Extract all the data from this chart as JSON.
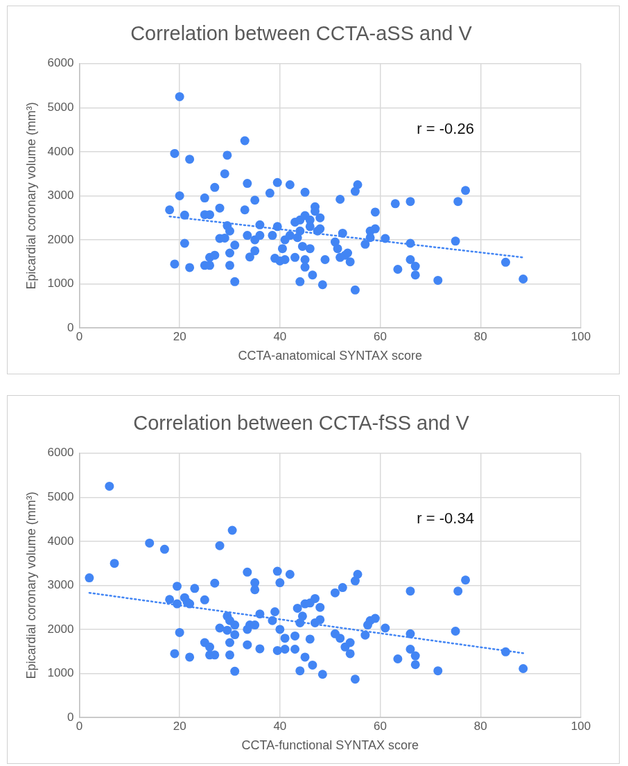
{
  "chart_data": [
    {
      "type": "scatter",
      "title": "Correlation between CCTA-aSS and V",
      "xlabel": "CCTA-anatomical SYNTAX score",
      "ylabel": "Epicardial coronary volume (mm³)",
      "xlim": [
        0,
        100
      ],
      "xticks": [
        0,
        20,
        40,
        60,
        80,
        100
      ],
      "ylim": [
        0,
        6000
      ],
      "yticks": [
        0,
        1000,
        2000,
        3000,
        4000,
        5000,
        6000
      ],
      "grid": true,
      "legend": false,
      "marker": "circle",
      "annotations": [
        "r = -0.26"
      ],
      "series": [
        {
          "color": "#4285f4",
          "x": [
            18,
            19,
            19,
            20,
            20,
            21,
            21,
            22,
            22,
            25,
            25,
            25,
            26,
            26,
            26,
            27,
            27,
            28,
            28,
            29,
            29,
            29.5,
            29.5,
            30,
            30,
            30,
            31,
            31,
            33,
            33,
            33.5,
            33.5,
            34,
            35,
            35,
            35,
            36,
            36,
            38,
            38.5,
            39,
            39.5,
            39.5,
            40,
            40.5,
            41,
            41,
            42,
            42,
            43,
            43,
            43.5,
            44,
            44,
            44,
            44.5,
            45,
            45,
            45,
            45,
            46,
            46,
            46,
            46.5,
            47,
            47,
            47.5,
            48,
            48,
            48.5,
            49,
            51,
            51.5,
            52,
            52,
            52.5,
            53,
            53.5,
            54,
            55,
            55,
            55.5,
            57,
            58,
            58,
            59,
            59,
            61,
            63,
            63.5,
            66,
            66,
            66,
            67,
            67,
            71.5,
            75,
            75.5,
            77,
            85,
            88.5
          ],
          "values": [
            2680,
            1450,
            3960,
            3000,
            5250,
            2560,
            1920,
            3830,
            1370,
            2950,
            2570,
            1420,
            2570,
            1600,
            1420,
            3190,
            1650,
            2720,
            2030,
            3500,
            2040,
            3920,
            2320,
            2200,
            1700,
            1420,
            1880,
            1050,
            2680,
            4250,
            3280,
            2100,
            1610,
            2900,
            2000,
            1750,
            2340,
            2100,
            3060,
            2100,
            1580,
            3300,
            2300,
            1520,
            1800,
            2000,
            1550,
            3250,
            2100,
            2400,
            1600,
            2050,
            2450,
            1050,
            2200,
            1850,
            3080,
            2550,
            1550,
            1380,
            2450,
            2300,
            1800,
            1200,
            2750,
            2650,
            2200,
            2500,
            2250,
            980,
            1550,
            1950,
            1800,
            2920,
            1600,
            2150,
            1650,
            1700,
            1500,
            3100,
            860,
            3250,
            1900,
            2050,
            2200,
            2250,
            2630,
            2030,
            2820,
            1330,
            2870,
            1920,
            1550,
            1400,
            1200,
            1080,
            1970,
            2870,
            3120,
            1490,
            1110
          ]
        },
        {
          "type": "line",
          "color": "#4285f4",
          "line_style": "dotted",
          "marker": "none",
          "x": [
            18,
            88.5
          ],
          "values": [
            2530,
            1600
          ]
        }
      ]
    },
    {
      "type": "scatter",
      "title": "Correlation between CCTA-fSS and V",
      "xlabel": "CCTA-functional SYNTAX score",
      "ylabel": "Epicardial coronary volume (mm³)",
      "xlim": [
        0,
        100
      ],
      "xticks": [
        0,
        20,
        40,
        60,
        80,
        100
      ],
      "ylim": [
        0,
        6000
      ],
      "yticks": [
        0,
        1000,
        2000,
        3000,
        4000,
        5000,
        6000
      ],
      "grid": true,
      "legend": false,
      "marker": "circle",
      "annotations": [
        "r = -0.34"
      ],
      "series": [
        {
          "color": "#4285f4",
          "x": [
            2,
            6,
            7,
            14,
            17,
            18,
            19,
            19.5,
            19.5,
            20,
            21,
            21.5,
            22,
            22,
            23,
            25,
            25,
            26,
            26,
            27,
            27,
            28,
            28,
            29.5,
            29.5,
            30,
            30,
            30,
            30.5,
            31,
            31,
            31,
            33.5,
            33.5,
            33.5,
            34,
            35,
            35,
            35,
            36,
            36,
            38.5,
            39,
            39.5,
            39.5,
            40,
            40,
            41,
            41,
            42,
            43,
            43,
            43.5,
            44,
            44,
            44.5,
            45,
            45,
            46,
            46,
            46.5,
            47,
            47,
            48,
            48,
            48.5,
            51,
            51,
            52,
            52.5,
            53,
            54,
            54,
            55,
            55,
            55.5,
            57,
            57.5,
            58,
            59,
            61,
            63.5,
            66,
            66,
            66,
            67,
            67,
            71.5,
            75,
            75.5,
            77,
            85,
            88.5
          ],
          "values": [
            3170,
            5250,
            3500,
            3960,
            3820,
            2680,
            1450,
            2980,
            2580,
            1930,
            2720,
            2620,
            1370,
            2580,
            2930,
            2670,
            1700,
            1600,
            1420,
            3050,
            1420,
            3900,
            2030,
            2300,
            1980,
            2200,
            1700,
            1420,
            4250,
            2100,
            1880,
            1050,
            3300,
            2000,
            1650,
            2100,
            3060,
            2900,
            2100,
            2350,
            1560,
            2200,
            2400,
            1520,
            3320,
            2000,
            3060,
            1800,
            1550,
            3250,
            1550,
            1850,
            2480,
            2150,
            1060,
            2300,
            1370,
            2580,
            2600,
            1780,
            1190,
            2700,
            2150,
            2500,
            2220,
            980,
            2830,
            1900,
            1800,
            2950,
            1600,
            1450,
            1700,
            3100,
            870,
            3250,
            1870,
            2100,
            2200,
            2250,
            2030,
            1330,
            2870,
            1900,
            1550,
            1400,
            1200,
            1060,
            1960,
            2870,
            3120,
            1490,
            1110
          ]
        },
        {
          "type": "line",
          "color": "#4285f4",
          "line_style": "dotted",
          "marker": "none",
          "x": [
            2,
            88.5
          ],
          "values": [
            2830,
            1460
          ]
        }
      ]
    }
  ]
}
